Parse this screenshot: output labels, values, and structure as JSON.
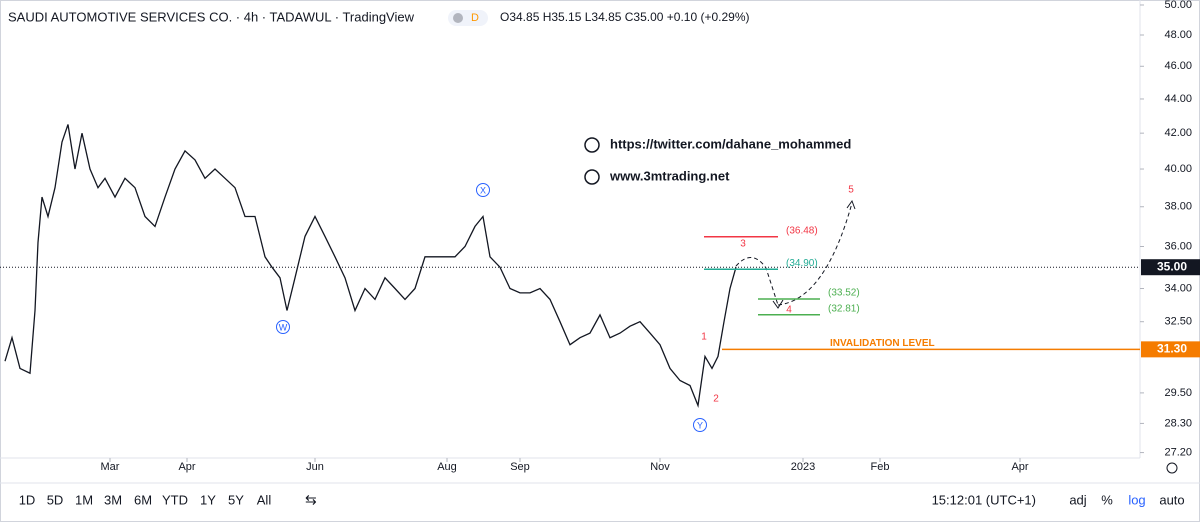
{
  "header": {
    "title": "SAUDI AUTOMOTIVE SERVICES CO. · 4h · TADAWUL · TradingView",
    "badge": "D",
    "ohlc": "O34.85 H35.15 L34.85 C35.00 +0.10 (+0.29%)"
  },
  "links": [
    "https://twitter.com/dahane_mohammed",
    "www.3mtrading.net"
  ],
  "toolbar": {
    "ranges": [
      "1D",
      "5D",
      "1M",
      "3M",
      "6M",
      "YTD",
      "1Y",
      "5Y",
      "All"
    ],
    "clock": "15:12:01 (UTC+1)",
    "options": [
      "adj",
      "%",
      "log",
      "auto"
    ]
  },
  "chart_data": {
    "type": "line",
    "log_scale": true,
    "color": "#131722",
    "x": [
      5,
      12,
      20,
      30,
      35,
      38,
      42,
      48,
      55,
      62,
      68,
      75,
      82,
      90,
      98,
      105,
      115,
      125,
      135,
      145,
      155,
      165,
      175,
      185,
      195,
      205,
      215,
      225,
      235,
      245,
      255,
      265,
      272,
      280,
      287,
      295,
      305,
      315,
      325,
      335,
      345,
      355,
      365,
      375,
      385,
      395,
      405,
      415,
      425,
      435,
      445,
      455,
      465,
      475,
      483,
      490,
      500,
      510,
      520,
      530,
      540,
      550,
      560,
      570,
      580,
      590,
      600,
      610,
      620,
      630,
      640,
      650,
      660,
      670,
      680,
      690,
      698,
      705,
      712,
      718,
      724,
      730,
      736
    ],
    "values": [
      30.8,
      31.8,
      30.5,
      30.3,
      33,
      36.2,
      38.5,
      37.5,
      39,
      41.5,
      42.5,
      40,
      42,
      40,
      39,
      39.5,
      38.5,
      39.5,
      39,
      37.5,
      37,
      38.5,
      40,
      41,
      40.5,
      39.5,
      40,
      39.5,
      39,
      37.5,
      37.5,
      35.5,
      35,
      34.5,
      33,
      34.5,
      36.5,
      37.5,
      36.5,
      35.5,
      34.5,
      33,
      34,
      33.5,
      34.5,
      34,
      33.5,
      34,
      35.5,
      35.5,
      35.5,
      35.5,
      36,
      37,
      37.5,
      35.5,
      35,
      34,
      33.8,
      33.8,
      34,
      33.5,
      32.5,
      31.5,
      31.8,
      32,
      32.8,
      31.8,
      32,
      32.3,
      32.5,
      32,
      31.5,
      30.5,
      30,
      29.8,
      29,
      31,
      30.5,
      31,
      32.5,
      34,
      35
    ],
    "xlim": [
      0,
      1140
    ],
    "xticks": [
      {
        "value": 110,
        "label": "Mar"
      },
      {
        "value": 187,
        "label": "Apr"
      },
      {
        "value": 315,
        "label": "Jun"
      },
      {
        "value": 447,
        "label": "Aug"
      },
      {
        "value": 520,
        "label": "Sep"
      },
      {
        "value": 660,
        "label": "Nov"
      },
      {
        "value": 803,
        "label": "2023"
      },
      {
        "value": 880,
        "label": "Feb"
      },
      {
        "value": 1020,
        "label": "Apr"
      }
    ],
    "ylim": [
      27.0,
      50.34
    ],
    "yticks": [
      {
        "value": 50,
        "label": "50.00"
      },
      {
        "value": 48,
        "label": "48.00"
      },
      {
        "value": 46,
        "label": "46.00"
      },
      {
        "value": 44,
        "label": "44.00"
      },
      {
        "value": 42,
        "label": "42.00"
      },
      {
        "value": 40,
        "label": "40.00"
      },
      {
        "value": 38,
        "label": "38.00"
      },
      {
        "value": 36,
        "label": "36.00"
      },
      {
        "value": 34,
        "label": "34.00"
      },
      {
        "value": 32.5,
        "label": "32.50"
      },
      {
        "value": 29.5,
        "label": "29.50"
      },
      {
        "value": 28.3,
        "label": "28.30"
      },
      {
        "value": 27.2,
        "label": "27.20"
      }
    ],
    "last_price": {
      "value": 35,
      "label": "35.00"
    },
    "levels": [
      {
        "value": 36.48,
        "label": "(36.48)",
        "color": "#f23645"
      },
      {
        "value": 34.9,
        "label": "(34.90)",
        "color": "#22ab94"
      },
      {
        "value": 33.52,
        "label": "(33.52)",
        "color": "#4caf50"
      },
      {
        "value": 32.81,
        "label": "(32.81)",
        "color": "#4caf50"
      }
    ],
    "invalidation": {
      "name": "INVALIDATION LEVEL",
      "value": 31.3,
      "label": "31.30",
      "color": "#f57c00"
    },
    "waves": [
      "W",
      "X",
      "Y",
      "1",
      "2",
      "3",
      "4",
      "5"
    ]
  }
}
